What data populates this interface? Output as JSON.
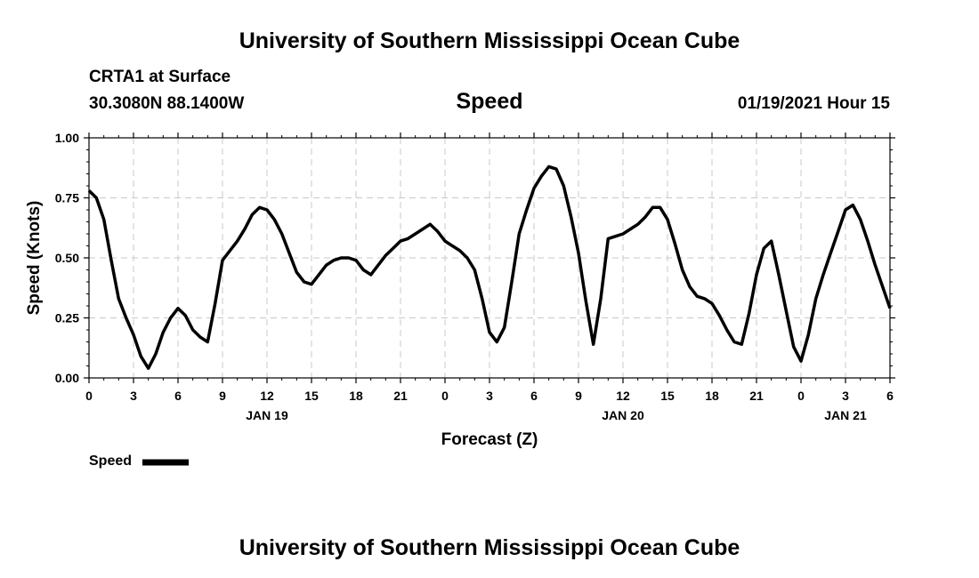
{
  "header": {
    "top_title": "University of Southern Mississippi Ocean Cube",
    "bottom_title": "University of Southern Mississippi Ocean Cube",
    "station": "CRTA1 at Surface",
    "coords": "30.3080N 88.1400W",
    "variable": "Speed",
    "datetime": "01/19/2021 Hour 15"
  },
  "legend": {
    "label": "Speed",
    "color": "#000000"
  },
  "chart_data": {
    "type": "line",
    "title": "Speed",
    "xlabel": "Forecast (Z)",
    "ylabel": "Speed (Knots)",
    "ylim": [
      0,
      1
    ],
    "xlim_hours": [
      0,
      54
    ],
    "grid": true,
    "legend_position": "bottom-left",
    "y_ticks": [
      "0.00",
      "0.25",
      "0.50",
      "0.75",
      "1.00"
    ],
    "x_ticks": [
      "0",
      "3",
      "6",
      "9",
      "12",
      "15",
      "18",
      "21",
      "0",
      "3",
      "6",
      "9",
      "12",
      "15",
      "18",
      "21",
      "0",
      "3",
      "6"
    ],
    "date_labels": [
      {
        "label": "JAN 19",
        "hour": 12
      },
      {
        "label": "JAN 20",
        "hour": 36
      },
      {
        "label": "JAN 21",
        "hour": 51
      }
    ],
    "series": [
      {
        "name": "Speed",
        "color": "#000000",
        "x": [
          0,
          0.5,
          1,
          1.5,
          2,
          2.5,
          3,
          3.5,
          4,
          4.5,
          5,
          5.5,
          6,
          6.5,
          7,
          7.5,
          8,
          8.5,
          9,
          9.5,
          10,
          10.5,
          11,
          11.5,
          12,
          12.5,
          13,
          13.5,
          14,
          14.5,
          15,
          15.5,
          16,
          16.5,
          17,
          17.5,
          18,
          18.5,
          19,
          19.5,
          20,
          20.5,
          21,
          21.5,
          22,
          22.5,
          23,
          23.5,
          24,
          24.5,
          25,
          25.5,
          26,
          26.5,
          27,
          27.5,
          28,
          28.5,
          29,
          29.5,
          30,
          30.5,
          31,
          31.5,
          32,
          32.5,
          33,
          33.5,
          34,
          34.5,
          35,
          35.5,
          36,
          36.5,
          37,
          37.5,
          38,
          38.5,
          39,
          39.5,
          40,
          40.5,
          41,
          41.5,
          42,
          42.5,
          43,
          43.5,
          44,
          44.5,
          45,
          45.5,
          46,
          46.5,
          47,
          47.5,
          48,
          48.5,
          49,
          49.5,
          50,
          50.5,
          51,
          51.5,
          52,
          52.5,
          53,
          53.5,
          54
        ],
        "values": [
          0.78,
          0.75,
          0.66,
          0.49,
          0.33,
          0.25,
          0.18,
          0.09,
          0.04,
          0.1,
          0.19,
          0.25,
          0.29,
          0.26,
          0.2,
          0.17,
          0.15,
          0.31,
          0.49,
          0.53,
          0.57,
          0.62,
          0.68,
          0.71,
          0.7,
          0.66,
          0.6,
          0.52,
          0.44,
          0.4,
          0.39,
          0.43,
          0.47,
          0.49,
          0.5,
          0.5,
          0.49,
          0.45,
          0.43,
          0.47,
          0.51,
          0.54,
          0.57,
          0.58,
          0.6,
          0.62,
          0.64,
          0.61,
          0.57,
          0.55,
          0.53,
          0.5,
          0.45,
          0.33,
          0.19,
          0.15,
          0.21,
          0.4,
          0.6,
          0.7,
          0.79,
          0.84,
          0.88,
          0.87,
          0.8,
          0.67,
          0.52,
          0.32,
          0.14,
          0.33,
          0.58,
          0.59,
          0.6,
          0.62,
          0.64,
          0.67,
          0.71,
          0.71,
          0.66,
          0.56,
          0.45,
          0.38,
          0.34,
          0.33,
          0.31,
          0.26,
          0.2,
          0.15,
          0.14,
          0.27,
          0.43,
          0.54,
          0.57,
          0.43,
          0.28,
          0.13,
          0.07,
          0.18,
          0.33,
          0.43,
          0.52,
          0.61,
          0.7,
          0.72,
          0.66,
          0.57,
          0.47,
          0.38,
          0.29
        ]
      }
    ]
  }
}
